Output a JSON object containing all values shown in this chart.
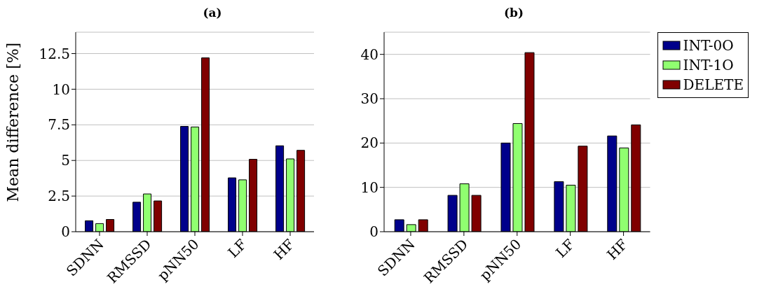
{
  "chart_data": [
    {
      "type": "bar",
      "title": "(a)",
      "ylabel": "Mean difference [%]",
      "categories": [
        "SDNN",
        "RMSSD",
        "pNN50",
        "LF",
        "HF"
      ],
      "series": [
        {
          "color": "#00008b",
          "values": [
            0.77,
            2.07,
            7.39,
            3.78,
            6.03
          ]
        },
        {
          "color": "#90ff70",
          "values": [
            0.57,
            2.65,
            7.35,
            3.64,
            5.11
          ]
        },
        {
          "color": "#800000",
          "values": [
            0.86,
            2.16,
            12.2,
            5.08,
            5.71
          ]
        }
      ],
      "ylim": [
        0,
        14
      ],
      "yticks": [
        0,
        2.5,
        5,
        7.5,
        10,
        12.5
      ],
      "grid": "y"
    },
    {
      "type": "bar",
      "title": "(b)",
      "categories": [
        "SDNN",
        "RMSSD",
        "pNN50",
        "LF",
        "HF"
      ],
      "series": [
        {
          "name": "INT-0O",
          "color": "#00008b",
          "values": [
            2.7,
            8.2,
            20.0,
            11.3,
            21.6
          ]
        },
        {
          "name": "INT-1O",
          "color": "#90ff70",
          "values": [
            1.6,
            10.8,
            24.4,
            10.5,
            18.9
          ]
        },
        {
          "name": "DELETE",
          "color": "#800000",
          "values": [
            2.7,
            8.2,
            40.4,
            19.3,
            24.1
          ]
        }
      ],
      "ylim": [
        0,
        45
      ],
      "yticks": [
        0,
        10,
        20,
        30,
        40
      ],
      "grid": "y",
      "legend": "right"
    }
  ]
}
